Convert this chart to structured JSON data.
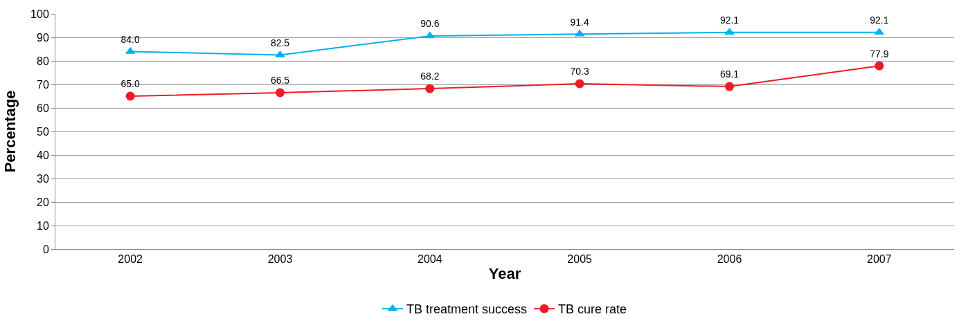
{
  "chart_data": {
    "type": "line",
    "xlabel": "Year",
    "ylabel": "Percentage",
    "categories": [
      "2002",
      "2003",
      "2004",
      "2005",
      "2006",
      "2007"
    ],
    "series": [
      {
        "name": "TB treatment success",
        "color": "#00b0f0",
        "marker": "triangle",
        "values": [
          84.0,
          82.5,
          90.6,
          91.4,
          92.1,
          92.1
        ],
        "value_labels": [
          "84.0",
          "82.5",
          "90.6",
          "91.4",
          "92.1",
          "92.1"
        ]
      },
      {
        "name": "TB cure rate",
        "color": "#ed1c24",
        "marker": "circle",
        "values": [
          65.0,
          66.5,
          68.2,
          70.3,
          69.1,
          77.9
        ],
        "value_labels": [
          "65.0",
          "66.5",
          "68.2",
          "70.3",
          "69.1",
          "77.9"
        ]
      }
    ],
    "ylim": [
      0,
      100
    ],
    "yticks": [
      0,
      10,
      20,
      30,
      40,
      50,
      60,
      70,
      80,
      90,
      100
    ],
    "grid": "y",
    "legend": "bottom",
    "line_style": "solid"
  }
}
